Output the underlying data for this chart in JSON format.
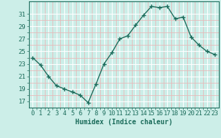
{
  "x": [
    0,
    1,
    2,
    3,
    4,
    5,
    6,
    7,
    8,
    9,
    10,
    11,
    12,
    13,
    14,
    15,
    16,
    17,
    18,
    19,
    20,
    21,
    22,
    23
  ],
  "y": [
    24.0,
    22.8,
    21.0,
    19.5,
    19.0,
    18.5,
    18.0,
    16.8,
    19.8,
    23.0,
    24.8,
    27.0,
    27.5,
    29.2,
    30.8,
    32.2,
    32.0,
    32.2,
    30.2,
    30.5,
    27.3,
    26.0,
    25.0,
    24.5
  ],
  "line_color": "#1a6b5a",
  "marker": "+",
  "marker_size": 4,
  "bg_color": "#cceee8",
  "grid_major_color": "#ffffff",
  "grid_minor_color": "#e8b8b8",
  "xlabel": "Humidex (Indice chaleur)",
  "xlim": [
    -0.5,
    23.5
  ],
  "ylim": [
    16,
    33
  ],
  "yticks": [
    17,
    19,
    21,
    23,
    25,
    27,
    29,
    31
  ],
  "xticks": [
    0,
    1,
    2,
    3,
    4,
    5,
    6,
    7,
    8,
    9,
    10,
    11,
    12,
    13,
    14,
    15,
    16,
    17,
    18,
    19,
    20,
    21,
    22,
    23
  ],
  "label_fontsize": 7,
  "tick_fontsize": 6.5
}
